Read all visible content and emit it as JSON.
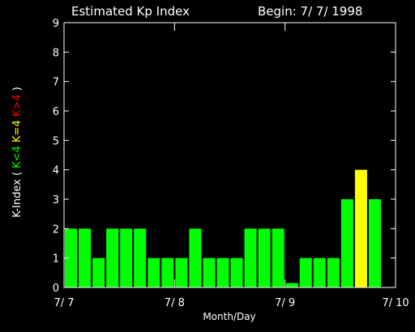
{
  "chart_data": {
    "type": "bar",
    "title": "Estimated Kp Index",
    "begin_label": "Begin: 7/ 7/ 1998",
    "xlabel": "Month/Day",
    "ylabel": {
      "prefix": "K-Index ( ",
      "parts": [
        {
          "text": "K<4",
          "color": "#00ff00"
        },
        {
          "text": "K=4",
          "color": "#ffff00"
        },
        {
          "text": "K>4",
          "color": "#ff0000"
        }
      ],
      "suffix": " )"
    },
    "ylim": [
      0,
      9
    ],
    "yticks": [
      "0",
      "1",
      "2",
      "3",
      "4",
      "5",
      "6",
      "7",
      "8",
      "9"
    ],
    "xlim_days": [
      0,
      3
    ],
    "xticks": [
      "7/ 7",
      "7/ 8",
      "7/ 9",
      "7/ 10"
    ],
    "bar_interval_hours": 3,
    "values": [
      2,
      2,
      1,
      2,
      2,
      2,
      1,
      1,
      1,
      2,
      1,
      1,
      1,
      2,
      2,
      2,
      0.15,
      1,
      1,
      1,
      3,
      4,
      3
    ],
    "colors": {
      "low": "#00ff00",
      "equal4": "#ffff00",
      "high": "#ff0000",
      "axis": "#ffffff",
      "background": "#000000"
    },
    "grid": false
  }
}
